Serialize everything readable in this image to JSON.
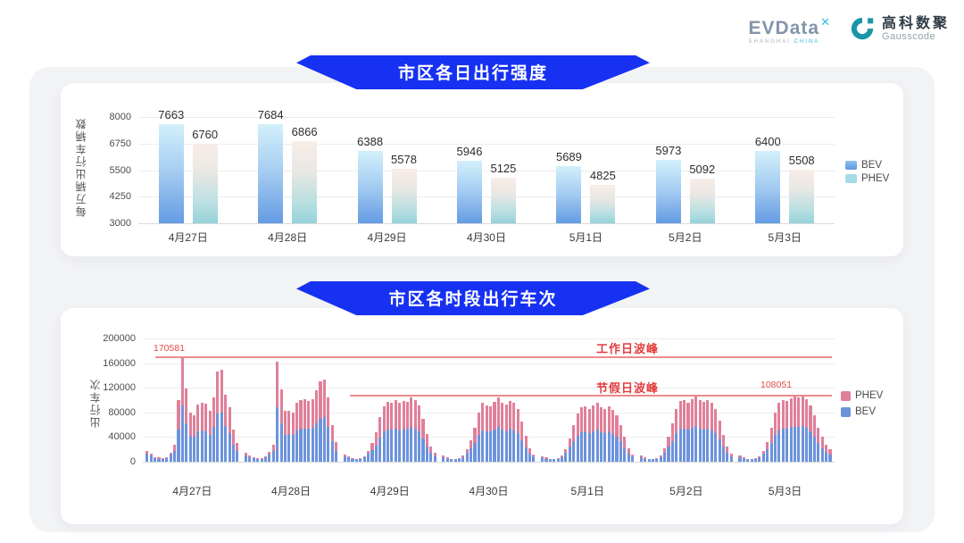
{
  "header": {
    "evdata": {
      "text": "EVData",
      "sup": "✕",
      "sub1": "SHANGHAI",
      "sub2": "CHINA"
    },
    "gausscode": {
      "cn": "高科数聚",
      "en": "Gausscode"
    }
  },
  "colors": {
    "ribbon_blue": "#1731f2",
    "bev_gradient_top": "#d3f0fb",
    "bev_gradient_bottom": "#649be3",
    "phev_gradient_top": "#f8ece8",
    "phev_gradient_bottom": "#95d2d9",
    "stacked_bev_blue": "#6c93dc",
    "stacked_phev_pink": "#e07f99",
    "annotation_red": "#e23d3d",
    "evdata_gray": "#8295aa",
    "evdata_cyan": "#36bcdf",
    "gausscode_teal": "#1b96a8"
  },
  "chart_data": [
    {
      "type": "bar",
      "title": "市区各日出行强度",
      "ylabel": "每万辆出行车辆数",
      "ymin": 3000,
      "ymax": 8000,
      "yticks": [
        3000,
        4250,
        5500,
        6750,
        8000
      ],
      "grid": true,
      "legend_position": "right",
      "categories": [
        "4月27日",
        "4月28日",
        "4月29日",
        "4月30日",
        "5月1日",
        "5月2日",
        "5月3日"
      ],
      "legend": [
        "BEV",
        "PHEV"
      ],
      "series": [
        {
          "name": "BEV",
          "values": [
            7663,
            7684,
            6388,
            5946,
            5689,
            5973,
            6400
          ]
        },
        {
          "name": "PHEV",
          "values": [
            6760,
            6866,
            5578,
            5125,
            4825,
            5092,
            5508
          ]
        }
      ]
    },
    {
      "type": "bar",
      "stacked": true,
      "title": "市区各时段出行车次",
      "ylabel": "出行车次",
      "ymin": 0,
      "ymax": 200000,
      "yticks": [
        0,
        40000,
        80000,
        120000,
        160000,
        200000
      ],
      "grid": true,
      "legend_position": "right",
      "bars_per_day": 24,
      "categories": [
        "4月27日",
        "4月28日",
        "4月29日",
        "4月30日",
        "5月1日",
        "5月2日",
        "5月3日"
      ],
      "legend": [
        "PHEV",
        "BEV"
      ],
      "annotations": {
        "workday_peak": {
          "label": "工作日波峰",
          "value": 170581,
          "value_label": "170581"
        },
        "holiday_peak": {
          "label": "节假日波峰",
          "value": 108051,
          "value_label": "108051"
        }
      },
      "series": [
        {
          "name": "PHEV",
          "values": [
            5000,
            3000,
            2000,
            2000,
            1500,
            2000,
            4000,
            10000,
            48000,
            79581,
            57000,
            38000,
            36000,
            44000,
            45000,
            44000,
            38000,
            48000,
            68000,
            69000,
            50000,
            41000,
            24000,
            13000,
            4000,
            3000,
            2000,
            1500,
            1500,
            2000,
            4000,
            10000,
            75000,
            55000,
            38000,
            38000,
            37000,
            44000,
            46000,
            47000,
            45000,
            46000,
            53000,
            60000,
            61000,
            48000,
            27000,
            14000,
            3000,
            2000,
            1500,
            1000,
            1500,
            2000,
            5000,
            11000,
            22000,
            33000,
            41000,
            45000,
            44000,
            46000,
            44000,
            45000,
            45000,
            48000,
            46000,
            42000,
            32000,
            20000,
            11000,
            5000,
            3000,
            2000,
            1000,
            1000,
            1500,
            3000,
            6000,
            13000,
            25000,
            37000,
            44000,
            42000,
            41000,
            45000,
            48000,
            44000,
            43000,
            46000,
            44000,
            39000,
            30000,
            19000,
            9000,
            4000,
            2000,
            2000,
            1000,
            1000,
            1500,
            3000,
            6000,
            14000,
            27000,
            36000,
            40000,
            41000,
            40000,
            42000,
            44000,
            40000,
            40000,
            41000,
            39000,
            35000,
            27000,
            18000,
            9000,
            4000,
            3000,
            2000,
            1000,
            1000,
            1500,
            3000,
            7000,
            15000,
            28000,
            39000,
            45000,
            46000,
            44000,
            47000,
            49000,
            46000,
            45000,
            46000,
            44000,
            39000,
            30000,
            20000,
            10000,
            4000,
            3000,
            2000,
            1000,
            1000,
            1500,
            2000,
            5000,
            12000,
            25000,
            37000,
            44000,
            46000,
            45000,
            47000,
            49000,
            48000,
            50051,
            46000,
            42000,
            34000,
            25000,
            18000,
            12000,
            8000
          ]
        },
        {
          "name": "BEV",
          "values": [
            13000,
            10000,
            6000,
            5000,
            4500,
            6000,
            11000,
            18000,
            52000,
            91000,
            62000,
            42000,
            40000,
            49000,
            51000,
            50000,
            44000,
            56000,
            78000,
            80000,
            58000,
            47000,
            28000,
            17000,
            10000,
            7000,
            6000,
            4500,
            4500,
            7000,
            12000,
            17000,
            88000,
            62000,
            44000,
            45000,
            43000,
            51000,
            54000,
            54000,
            53000,
            55000,
            63000,
            70000,
            72000,
            56000,
            33000,
            18000,
            9000,
            7000,
            4500,
            4000,
            4500,
            7000,
            13000,
            19000,
            26000,
            39000,
            49000,
            52000,
            52000,
            54000,
            51000,
            53000,
            52000,
            57000,
            54000,
            50000,
            38000,
            25000,
            14000,
            9000,
            7000,
            5000,
            4000,
            4000,
            4500,
            7000,
            14000,
            22000,
            30000,
            43000,
            51000,
            50000,
            49000,
            52000,
            57000,
            52000,
            50000,
            53000,
            51000,
            46000,
            35000,
            23000,
            13000,
            8000,
            7000,
            5000,
            4000,
            4000,
            4500,
            7000,
            14000,
            24000,
            33000,
            42000,
            48000,
            49000,
            46000,
            50000,
            52000,
            48000,
            46000,
            49000,
            45000,
            41000,
            33000,
            22000,
            13000,
            8000,
            7000,
            5000,
            4000,
            4000,
            4500,
            7000,
            15000,
            25000,
            34000,
            46000,
            53000,
            54000,
            52000,
            55000,
            58000,
            54000,
            52000,
            54000,
            51000,
            46000,
            36000,
            24000,
            14000,
            9000,
            7000,
            5000,
            4000,
            4000,
            4500,
            7000,
            13000,
            20000,
            30000,
            43000,
            51000,
            54000,
            53000,
            56000,
            57000,
            56000,
            58000,
            55000,
            50000,
            41000,
            30000,
            22000,
            16000,
            12000
          ]
        }
      ]
    }
  ]
}
